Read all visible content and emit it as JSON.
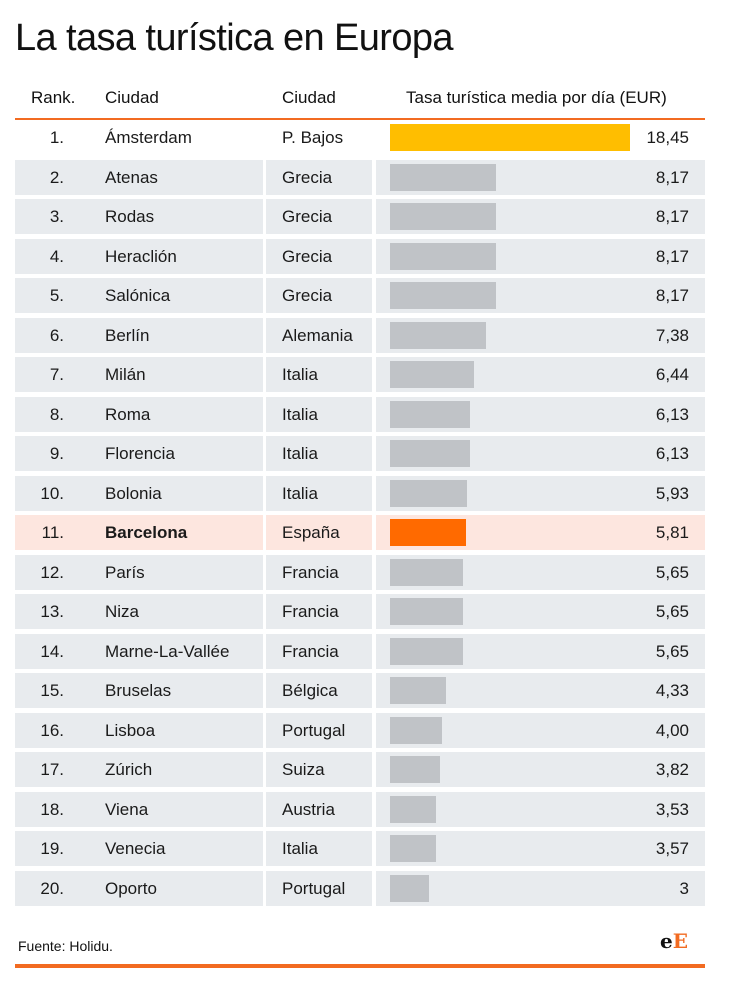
{
  "title": "La tasa turística en Europa",
  "headers": {
    "rank": "Rank.",
    "city": "Ciudad",
    "country": "Ciudad",
    "value": "Tasa turística media por día (EUR)"
  },
  "colors": {
    "default_bar": "#c0c3c7",
    "top_bar": "#ffbe00",
    "highlight_bar": "#ff6a00",
    "accent": "#f26b21"
  },
  "chart_data": {
    "type": "bar",
    "orientation": "horizontal",
    "xlim": [
      0,
      18.45
    ],
    "grid": false,
    "highlight": "Barcelona",
    "rows": [
      {
        "rank": "1.",
        "city": "Ámsterdam",
        "country": "P. Bajos",
        "value": 18.45,
        "label": "18,45"
      },
      {
        "rank": "2.",
        "city": "Atenas",
        "country": "Grecia",
        "value": 8.17,
        "label": "8,17"
      },
      {
        "rank": "3.",
        "city": "Rodas",
        "country": "Grecia",
        "value": 8.17,
        "label": "8,17"
      },
      {
        "rank": "4.",
        "city": "Heraclión",
        "country": "Grecia",
        "value": 8.17,
        "label": "8,17"
      },
      {
        "rank": "5.",
        "city": "Salónica",
        "country": "Grecia",
        "value": 8.17,
        "label": "8,17"
      },
      {
        "rank": "6.",
        "city": "Berlín",
        "country": "Alemania",
        "value": 7.38,
        "label": "7,38"
      },
      {
        "rank": "7.",
        "city": "Milán",
        "country": "Italia",
        "value": 6.44,
        "label": "6,44"
      },
      {
        "rank": "8.",
        "city": "Roma",
        "country": "Italia",
        "value": 6.13,
        "label": "6,13"
      },
      {
        "rank": "9.",
        "city": "Florencia",
        "country": "Italia",
        "value": 6.13,
        "label": "6,13"
      },
      {
        "rank": "10.",
        "city": "Bolonia",
        "country": "Italia",
        "value": 5.93,
        "label": "5,93"
      },
      {
        "rank": "11.",
        "city": "Barcelona",
        "country": "España",
        "value": 5.81,
        "label": "5,81"
      },
      {
        "rank": "12.",
        "city": "París",
        "country": "Francia",
        "value": 5.65,
        "label": "5,65"
      },
      {
        "rank": "13.",
        "city": "Niza",
        "country": "Francia",
        "value": 5.65,
        "label": "5,65"
      },
      {
        "rank": "14.",
        "city": "Marne-La-Vallée",
        "country": "Francia",
        "value": 5.65,
        "label": "5,65"
      },
      {
        "rank": "15.",
        "city": "Bruselas",
        "country": "Bélgica",
        "value": 4.33,
        "label": "4,33"
      },
      {
        "rank": "16.",
        "city": "Lisboa",
        "country": "Portugal",
        "value": 4.0,
        "label": "4,00"
      },
      {
        "rank": "17.",
        "city": "Zúrich",
        "country": "Suiza",
        "value": 3.82,
        "label": "3,82"
      },
      {
        "rank": "18.",
        "city": "Viena",
        "country": "Austria",
        "value": 3.53,
        "label": "3,53"
      },
      {
        "rank": "19.",
        "city": "Venecia",
        "country": "Italia",
        "value": 3.57,
        "label": "3,57"
      },
      {
        "rank": "20.",
        "city": "Oporto",
        "country": "Portugal",
        "value": 3,
        "label": "3"
      }
    ]
  },
  "source": "Fuente: Holidu.",
  "logo": {
    "e1": "e",
    "e2": "E"
  }
}
